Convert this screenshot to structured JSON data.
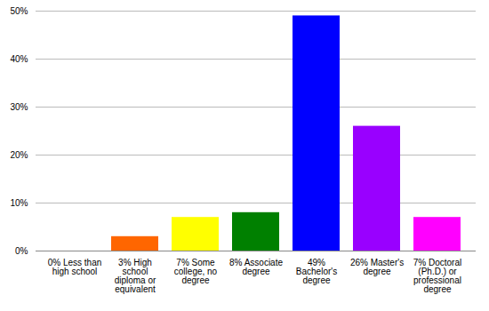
{
  "chart_data": {
    "type": "bar",
    "categories": [
      "0% Less than high school",
      "3% High school diploma or equivalent",
      "7% Some college, no degree",
      "8% Associate degree",
      "49% Bachelor's degree",
      "26% Master's degree",
      "7% Doctoral (Ph.D.) or professional degree"
    ],
    "values": [
      0,
      3,
      7,
      8,
      49,
      26,
      7
    ],
    "colors": [
      "#ff0000",
      "#ff6600",
      "#ffff00",
      "#008000",
      "#0000ff",
      "#9900ff",
      "#ff00ff"
    ],
    "ylim": [
      0,
      50
    ],
    "yticks": [
      {
        "value": 0,
        "label": "0%"
      },
      {
        "value": 10,
        "label": "10%"
      },
      {
        "value": 20,
        "label": "20%"
      },
      {
        "value": 30,
        "label": "30%"
      },
      {
        "value": 40,
        "label": "40%"
      },
      {
        "value": 50,
        "label": "50%"
      }
    ],
    "grid": true
  }
}
